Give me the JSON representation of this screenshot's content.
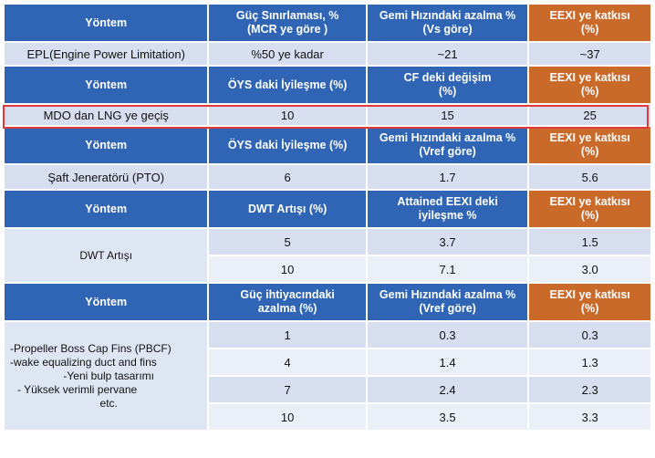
{
  "table1": {
    "header": [
      "Yöntem",
      "Güç Sınırlaması, %\n(MCR ye göre )",
      "Gemi Hızındaki azalma %\n(Vs göre)",
      "EEXI ye katkısı\n(%)"
    ],
    "row": [
      "EPL(Engine Power Limitation)",
      "%50 ye kadar",
      "~21",
      "~37"
    ]
  },
  "table2": {
    "header": [
      "Yöntem",
      "ÖYS daki İyileşme (%)",
      "CF deki değişim\n(%)",
      "EEXI ye katkısı\n(%)"
    ],
    "row": [
      "MDO dan LNG ye geçiş",
      "10",
      "15",
      "25"
    ]
  },
  "table3": {
    "header": [
      "Yöntem",
      "ÖYS daki İyileşme (%)",
      "Gemi Hızındaki azalma %\n(Vref göre)",
      "EEXI ye katkısı\n(%)"
    ],
    "row": [
      "Şaft Jeneratörü (PTO)",
      "6",
      "1.7",
      "5.6"
    ]
  },
  "table4": {
    "header": [
      "Yöntem",
      "DWT Artışı (%)",
      "Attained EEXI deki\niyileşme %",
      "EEXI ye katkısı\n(%)"
    ],
    "method": "DWT Artışı",
    "rows": [
      [
        "5",
        "3.7",
        "1.5"
      ],
      [
        "10",
        "7.1",
        "3.0"
      ]
    ]
  },
  "table5": {
    "header": [
      "Yöntem",
      "Güç ihtiyacındaki\nazalma (%)",
      "Gemi Hızındaki azalma %\n(Vref göre)",
      "EEXI ye katkısı\n(%)"
    ],
    "method_lines": [
      "-Propeller Boss Cap Fins (PBCF)",
      "-wake equalizing duct and fins",
      "-Yeni bulp tasarımı",
      "-    Yüksek verimli pervane",
      "etc."
    ],
    "rows": [
      [
        "1",
        "0.3",
        "0.3"
      ],
      [
        "4",
        "1.4",
        "1.3"
      ],
      [
        "7",
        "2.4",
        "2.3"
      ],
      [
        "10",
        "3.5",
        "3.3"
      ]
    ]
  },
  "colors": {
    "header_blue": "#2f65b4",
    "header_orange": "#c96a2a",
    "row_light": "#d6deef",
    "row_lighter": "#ebeff8",
    "highlight": "#e03a3a"
  }
}
